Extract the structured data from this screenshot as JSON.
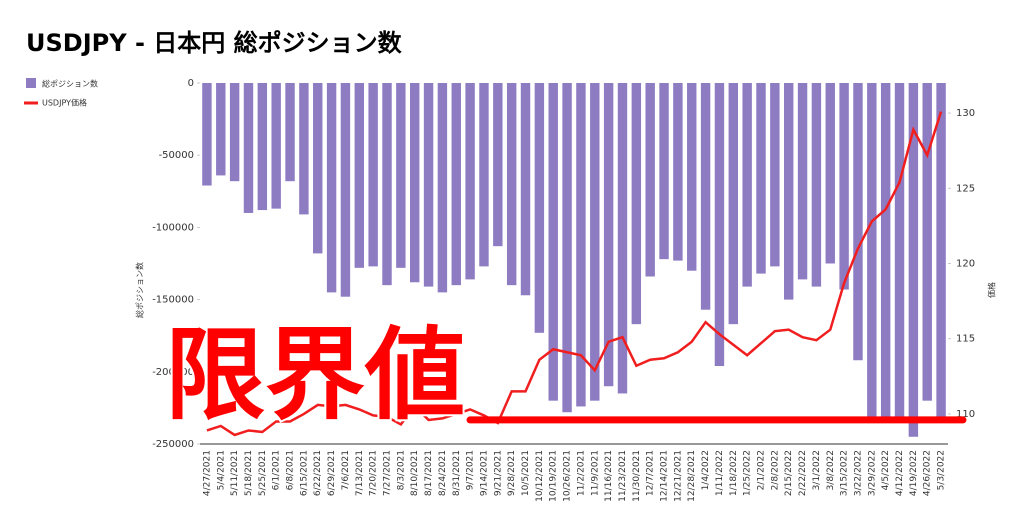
{
  "chart_data": {
    "type": "bar-line",
    "title": "USDJPY - 日本円 総ポジション数",
    "categories": [
      "4/27/2021",
      "5/4/2021",
      "5/11/2021",
      "5/18/2021",
      "5/25/2021",
      "6/1/2021",
      "6/8/2021",
      "6/15/2021",
      "6/22/2021",
      "6/29/2021",
      "7/6/2021",
      "7/13/2021",
      "7/20/2021",
      "7/27/2021",
      "8/3/2021",
      "8/10/2021",
      "8/17/2021",
      "8/24/2021",
      "8/31/2021",
      "9/7/2021",
      "9/14/2021",
      "9/21/2021",
      "9/28/2021",
      "10/5/2021",
      "10/12/2021",
      "10/19/2021",
      "10/26/2021",
      "11/2/2021",
      "11/9/2021",
      "11/16/2021",
      "11/23/2021",
      "11/30/2021",
      "12/7/2021",
      "12/14/2021",
      "12/21/2021",
      "12/28/2021",
      "1/4/2022",
      "1/11/2022",
      "1/18/2022",
      "1/25/2022",
      "2/1/2022",
      "2/8/2022",
      "2/15/2022",
      "2/22/2022",
      "3/1/2022",
      "3/8/2022",
      "3/15/2022",
      "3/22/2022",
      "3/29/2022",
      "4/5/2022",
      "4/12/2022",
      "4/19/2022",
      "4/26/2022",
      "5/3/2022"
    ],
    "series": [
      {
        "name": "総ポジション数",
        "type": "bar",
        "color": "#8e7cc3",
        "values": [
          -71000,
          -64000,
          -68000,
          -90000,
          -88000,
          -87000,
          -68000,
          -91000,
          -118000,
          -145000,
          -148000,
          -128000,
          -127000,
          -140000,
          -128000,
          -138000,
          -141000,
          -145000,
          -140000,
          -136000,
          -127000,
          -113000,
          -140000,
          -147000,
          -173000,
          -220000,
          -228000,
          -224000,
          -220000,
          -210000,
          -215000,
          -167000,
          -134000,
          -122000,
          -123000,
          -130000,
          -157000,
          -196000,
          -167000,
          -141000,
          -132000,
          -127000,
          -150000,
          -136000,
          -141000,
          -125000,
          -143000,
          -192000,
          -235000,
          -235000,
          -233000,
          -245000,
          -220000,
          -233000
        ]
      },
      {
        "name": "USDJPY価格",
        "type": "line",
        "axis": "y2",
        "color": "#f01e1e",
        "values": [
          108.9,
          109.2,
          108.6,
          108.9,
          108.8,
          109.5,
          109.5,
          110.0,
          110.6,
          110.5,
          110.6,
          110.3,
          109.9,
          109.8,
          109.3,
          110.5,
          109.6,
          109.7,
          110.0,
          110.3,
          109.9,
          109.4,
          111.5,
          111.5,
          113.6,
          114.3,
          114.1,
          113.9,
          112.9,
          114.8,
          115.1,
          113.2,
          113.6,
          113.7,
          114.1,
          114.8,
          116.1,
          115.3,
          114.6,
          113.9,
          114.7,
          115.5,
          115.6,
          115.1,
          114.9,
          115.6,
          118.7,
          121.0,
          122.8,
          123.6,
          125.4,
          128.9,
          127.2,
          130.1
        ]
      }
    ],
    "ylabel": "総ポジション数",
    "y2label": "価格",
    "ylim": [
      -250000,
      0
    ],
    "yticks": [
      0,
      -50000,
      -100000,
      -150000,
      -200000,
      -250000
    ],
    "y2lim": [
      108,
      132
    ],
    "y2ticks": [
      110,
      115,
      120,
      125,
      130
    ],
    "legend": "top-left",
    "annotation": {
      "text": "限界値",
      "value": 109.6,
      "color": "#ff0000"
    }
  }
}
